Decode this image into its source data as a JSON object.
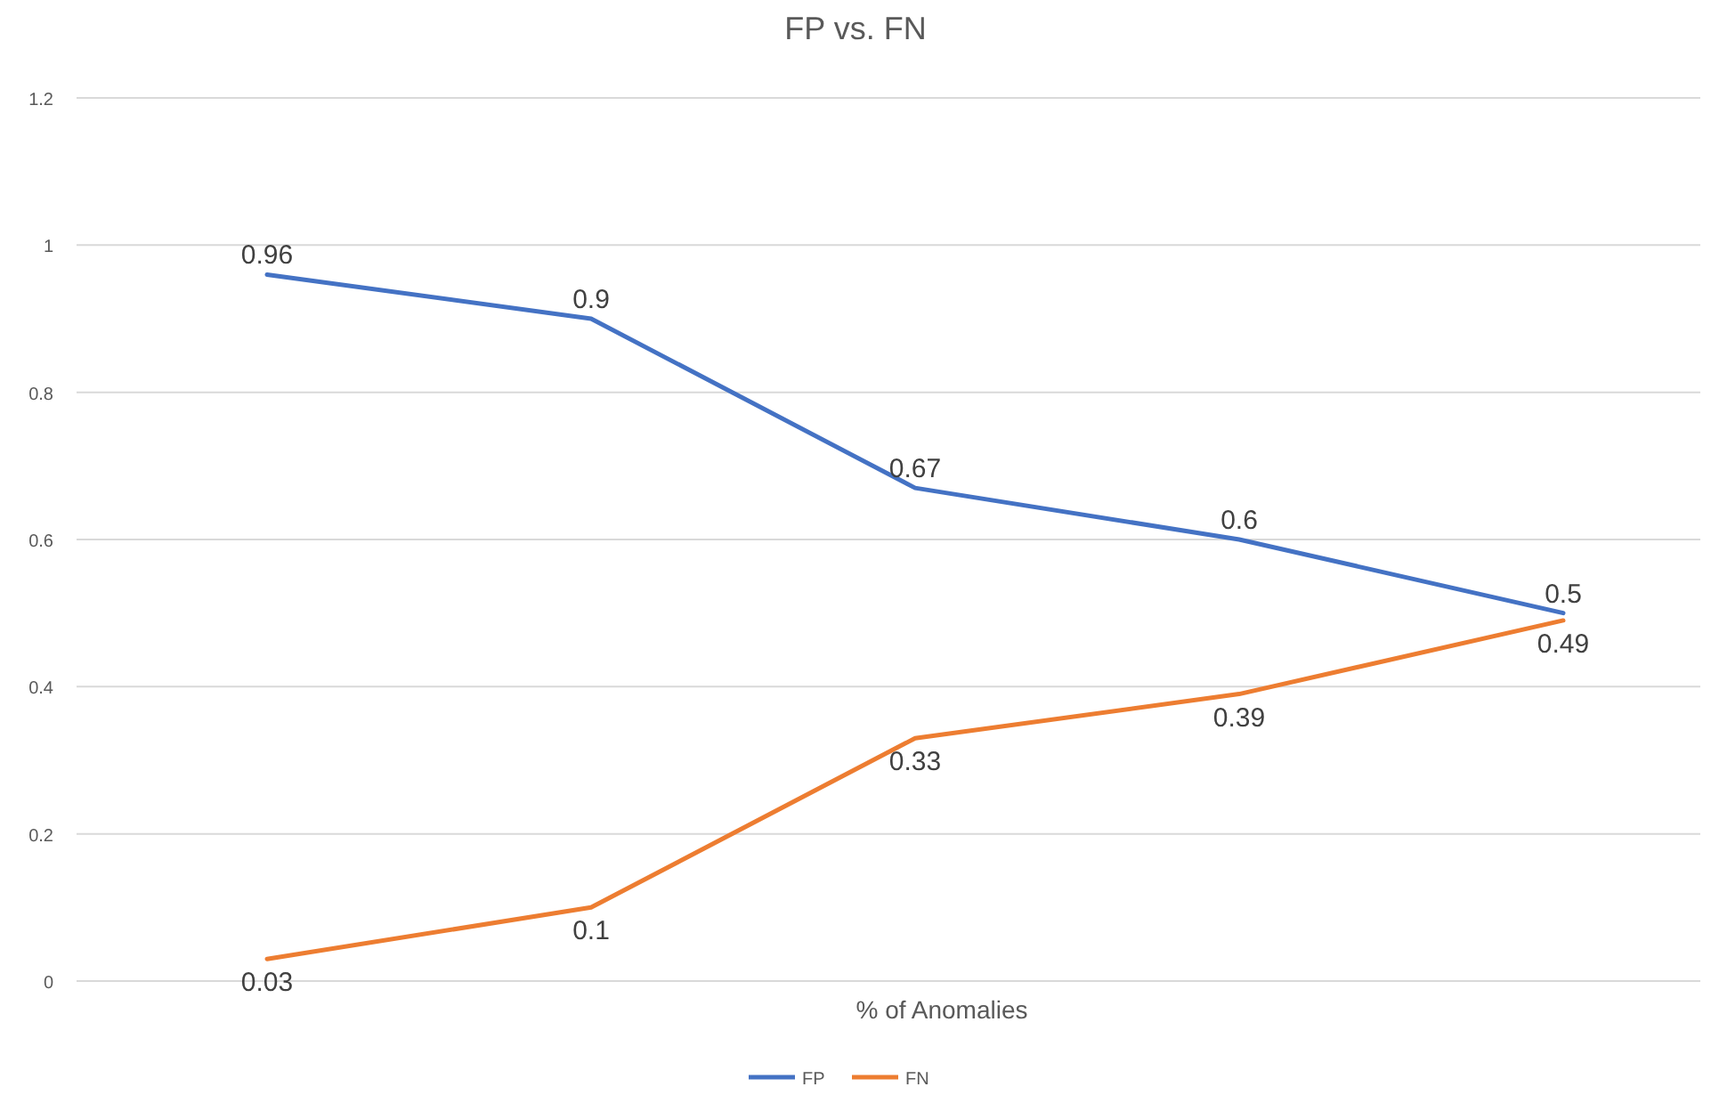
{
  "chart_data": {
    "type": "line",
    "title": "FP vs. FN",
    "xlabel": "%  of Anomalies",
    "categories": [
      null,
      null,
      null,
      null,
      null
    ],
    "series": [
      {
        "name": "FP",
        "color": "#4472c4",
        "values": [
          0.96,
          0.9,
          0.67,
          0.6,
          0.5
        ]
      },
      {
        "name": "FN",
        "color": "#ed7d31",
        "values": [
          0.03,
          0.1,
          0.33,
          0.39,
          0.49
        ]
      }
    ],
    "ylim": [
      0,
      1.2
    ],
    "yticks": [
      0,
      0.2,
      0.4,
      0.6,
      0.8,
      1,
      1.2
    ],
    "grid": "y",
    "legend": "bottom",
    "data_labels": true,
    "marker": "none",
    "line_style": "solid"
  }
}
